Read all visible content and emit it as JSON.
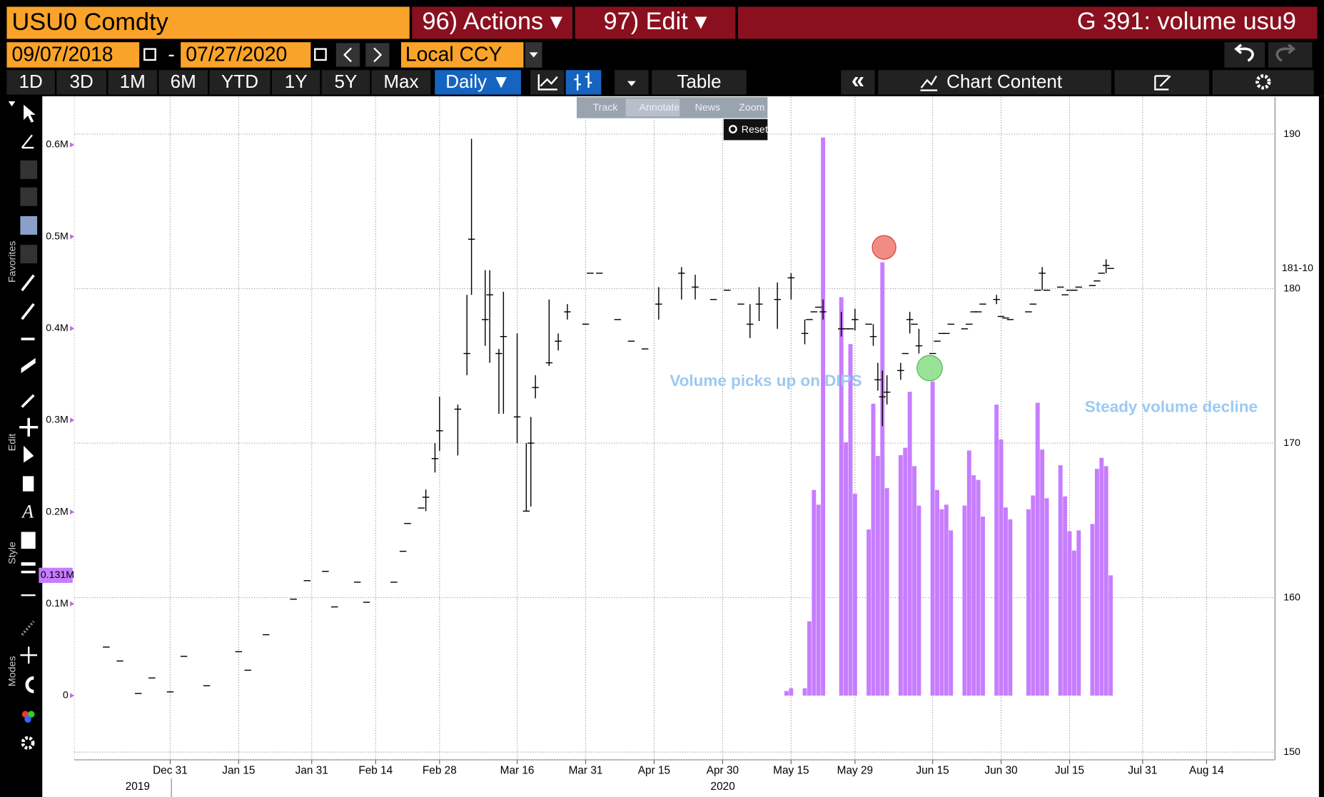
{
  "header": {
    "security": "USU0 Comdty",
    "actions": "96) Actions ▾",
    "edit": "97) Edit ▾",
    "chart_name": "G 391: volume usu9"
  },
  "controls": {
    "start_date": "09/07/2018",
    "date_separator": "-",
    "end_date": "07/27/2020",
    "currency": "Local CCY",
    "ranges": [
      "1D",
      "3D",
      "1M",
      "6M",
      "YTD",
      "1Y",
      "5Y",
      "Max"
    ],
    "frequency": "Daily ▼",
    "table": "Table",
    "collapse": "«",
    "chart_content": "Chart Content"
  },
  "zoom_menu": {
    "items": [
      "Track",
      "Annotate",
      "News",
      "Zoom"
    ],
    "reset": "Reset"
  },
  "sidebar": {
    "sections": [
      "Favorites",
      "Edit",
      "Style",
      "Modes"
    ]
  },
  "chart_data": {
    "type": "bar",
    "grid": true,
    "xlim": [
      "2019-12-10",
      "2020-08-29"
    ],
    "xticks": [
      {
        "value": "2019-12-31",
        "label": "Dec 31"
      },
      {
        "value": "2020-01-15",
        "label": "Jan 15"
      },
      {
        "value": "2020-01-31",
        "label": "Jan 31"
      },
      {
        "value": "2020-02-14",
        "label": "Feb 14"
      },
      {
        "value": "2020-02-28",
        "label": "Feb 28"
      },
      {
        "value": "2020-03-16",
        "label": "Mar 16"
      },
      {
        "value": "2020-03-31",
        "label": "Mar 31"
      },
      {
        "value": "2020-04-15",
        "label": "Apr 15"
      },
      {
        "value": "2020-04-30",
        "label": "Apr 30"
      },
      {
        "value": "2020-05-15",
        "label": "May 15"
      },
      {
        "value": "2020-05-29",
        "label": "May 29"
      },
      {
        "value": "2020-06-15",
        "label": "Jun 15"
      },
      {
        "value": "2020-06-30",
        "label": "Jun 30"
      },
      {
        "value": "2020-07-15",
        "label": "Jul 15"
      },
      {
        "value": "2020-07-31",
        "label": "Jul 31"
      },
      {
        "value": "2020-08-14",
        "label": "Aug 14"
      }
    ],
    "year_labels": [
      "2019",
      "2020"
    ],
    "ylim": [
      -70000,
      652000
    ],
    "yticks": [
      0,
      {
        "value": 100000,
        "label": "0.1M"
      },
      {
        "value": 200000,
        "label": "0.2M"
      },
      {
        "value": 300000,
        "label": "0.3M"
      },
      {
        "value": 400000,
        "label": "0.4M"
      },
      {
        "value": 500000,
        "label": "0.5M"
      },
      {
        "value": 600000,
        "label": "0.6M"
      }
    ],
    "y2lim": [
      149.5,
      192.4
    ],
    "y2ticks": [
      150,
      160,
      170,
      180,
      190
    ],
    "annotations": [
      "Volume picks up on DIPS",
      "Steady volume decline"
    ],
    "series": [
      {
        "type": "bar",
        "color": "#c77dff",
        "last_label": "0.131M",
        "x": [
          "2020-05-14",
          "2020-05-15",
          "2020-05-18",
          "2020-05-19",
          "2020-05-20",
          "2020-05-21",
          "2020-05-22",
          "2020-05-26",
          "2020-05-27",
          "2020-05-28",
          "2020-05-29",
          "2020-06-01",
          "2020-06-02",
          "2020-06-03",
          "2020-06-04",
          "2020-06-05",
          "2020-06-08",
          "2020-06-09",
          "2020-06-10",
          "2020-06-11",
          "2020-06-12",
          "2020-06-15",
          "2020-06-16",
          "2020-06-17",
          "2020-06-18",
          "2020-06-19",
          "2020-06-22",
          "2020-06-23",
          "2020-06-24",
          "2020-06-25",
          "2020-06-26",
          "2020-06-29",
          "2020-06-30",
          "2020-07-01",
          "2020-07-02",
          "2020-07-06",
          "2020-07-07",
          "2020-07-08",
          "2020-07-09",
          "2020-07-10",
          "2020-07-13",
          "2020-07-14",
          "2020-07-15",
          "2020-07-16",
          "2020-07-17",
          "2020-07-20",
          "2020-07-21",
          "2020-07-22",
          "2020-07-23",
          "2020-07-24"
        ],
        "values": [
          5000,
          8000,
          8000,
          81000,
          224000,
          208000,
          608000,
          434000,
          276000,
          383000,
          220000,
          181000,
          318000,
          261000,
          472000,
          226000,
          262000,
          270000,
          331000,
          250000,
          207000,
          342000,
          224000,
          203000,
          208000,
          180000,
          207000,
          267000,
          240000,
          235000,
          195000,
          317000,
          279000,
          205000,
          192000,
          203000,
          218000,
          319000,
          268000,
          215000,
          251000,
          217000,
          179000,
          158000,
          180000,
          187000,
          247000,
          259000,
          250000,
          131000
        ]
      },
      {
        "type": "ohlc",
        "axis": "y2",
        "color": "#000000",
        "last_label": "181-10",
        "x": [
          "2019-12-17",
          "2019-12-20",
          "2019-12-24",
          "2019-12-27",
          "2019-12-31",
          "2020-01-03",
          "2020-01-08",
          "2020-01-15",
          "2020-01-17",
          "2020-01-21",
          "2020-01-27",
          "2020-01-30",
          "2020-02-03",
          "2020-02-05",
          "2020-02-10",
          "2020-02-12",
          "2020-02-18",
          "2020-02-20",
          "2020-02-21",
          "2020-02-24",
          "2020-02-25",
          "2020-02-27",
          "2020-02-28",
          "2020-03-03",
          "2020-03-05",
          "2020-03-06",
          "2020-03-09",
          "2020-03-10",
          "2020-03-12",
          "2020-03-13",
          "2020-03-16",
          "2020-03-18",
          "2020-03-19",
          "2020-03-20",
          "2020-03-23",
          "2020-03-25",
          "2020-03-27",
          "2020-03-31",
          "2020-04-01",
          "2020-04-03",
          "2020-04-07",
          "2020-04-10",
          "2020-04-13",
          "2020-04-16",
          "2020-04-21",
          "2020-04-24",
          "2020-04-28",
          "2020-05-01",
          "2020-05-04",
          "2020-05-06",
          "2020-05-08",
          "2020-05-12",
          "2020-05-15",
          "2020-05-18",
          "2020-05-19",
          "2020-05-20",
          "2020-05-21",
          "2020-05-22",
          "2020-05-26",
          "2020-05-27",
          "2020-05-28",
          "2020-05-29",
          "2020-06-01",
          "2020-06-02",
          "2020-06-03",
          "2020-06-04",
          "2020-06-05",
          "2020-06-08",
          "2020-06-09",
          "2020-06-10",
          "2020-06-11",
          "2020-06-12",
          "2020-06-15",
          "2020-06-16",
          "2020-06-17",
          "2020-06-18",
          "2020-06-19",
          "2020-06-22",
          "2020-06-23",
          "2020-06-24",
          "2020-06-25",
          "2020-06-26",
          "2020-06-29",
          "2020-06-30",
          "2020-07-01",
          "2020-07-02",
          "2020-07-06",
          "2020-07-07",
          "2020-07-08",
          "2020-07-09",
          "2020-07-10",
          "2020-07-13",
          "2020-07-14",
          "2020-07-15",
          "2020-07-16",
          "2020-07-17",
          "2020-07-20",
          "2020-07-21",
          "2020-07-22",
          "2020-07-23",
          "2020-07-24"
        ],
        "high": [
          null,
          null,
          null,
          null,
          null,
          null,
          null,
          null,
          null,
          null,
          null,
          null,
          null,
          null,
          null,
          null,
          null,
          null,
          null,
          null,
          167.0,
          170.0,
          173.0,
          172.5,
          179.6,
          189.7,
          181.2,
          181.2,
          176.1,
          179.8,
          177.1,
          170.0,
          171.7,
          174.4,
          179.3,
          177.1,
          179.0,
          null,
          null,
          null,
          null,
          null,
          null,
          180.1,
          181.4,
          180.9,
          null,
          null,
          null,
          179.0,
          180.1,
          180.4,
          181.0,
          178.0,
          null,
          null,
          null,
          179.3,
          178.5,
          null,
          null,
          178.7,
          null,
          177.7,
          175.2,
          174.7,
          174.4,
          175.2,
          null,
          178.5,
          null,
          177.4,
          null,
          null,
          null,
          null,
          null,
          null,
          null,
          null,
          null,
          null,
          179.6,
          null,
          null,
          null,
          null,
          null,
          null,
          181.4,
          null,
          null,
          null,
          null,
          null,
          null,
          null,
          null,
          null,
          181.9,
          null
        ],
        "low": [
          null,
          null,
          null,
          null,
          null,
          null,
          null,
          null,
          null,
          null,
          null,
          null,
          null,
          null,
          null,
          null,
          null,
          null,
          null,
          null,
          165.6,
          168.1,
          169.5,
          169.2,
          174.4,
          179.6,
          176.3,
          175.2,
          171.9,
          171.9,
          170.0,
          165.6,
          165.9,
          172.9,
          175.0,
          176.0,
          178.0,
          null,
          null,
          null,
          null,
          null,
          null,
          178.0,
          179.3,
          179.3,
          null,
          null,
          null,
          176.8,
          177.9,
          177.4,
          179.3,
          176.4,
          null,
          null,
          null,
          178.0,
          176.9,
          null,
          null,
          177.3,
          null,
          176.3,
          173.4,
          171.1,
          172.5,
          174.1,
          null,
          177.1,
          null,
          175.8,
          null,
          null,
          null,
          null,
          null,
          null,
          null,
          null,
          null,
          null,
          179.0,
          null,
          null,
          null,
          null,
          null,
          null,
          179.9,
          null,
          null,
          null,
          null,
          null,
          null,
          null,
          null,
          null,
          181.0,
          null
        ],
        "close": [
          156.8,
          155.9,
          153.8,
          154.8,
          153.9,
          156.2,
          154.3,
          156.5,
          155.3,
          157.6,
          159.9,
          161.1,
          161.7,
          159.4,
          161.0,
          159.7,
          161.0,
          163.0,
          164.8,
          165.8,
          166.5,
          169.0,
          170.8,
          172.2,
          175.8,
          183.2,
          178.0,
          179.6,
          175.8,
          176.9,
          171.7,
          165.6,
          170.0,
          173.6,
          175.2,
          176.6,
          178.5,
          177.7,
          181.0,
          181.0,
          178.0,
          176.6,
          176.1,
          179.0,
          181.0,
          180.1,
          179.3,
          179.9,
          179.0,
          177.7,
          179.0,
          179.3,
          180.7,
          177.1,
          178.0,
          178.5,
          178.8,
          178.5,
          177.4,
          177.4,
          177.4,
          178.0,
          177.7,
          176.9,
          174.1,
          173.0,
          173.3,
          174.7,
          175.8,
          178.0,
          177.7,
          176.3,
          175.8,
          176.6,
          177.1,
          177.1,
          177.7,
          177.4,
          177.7,
          178.5,
          178.5,
          179.0,
          179.3,
          178.2,
          178.1,
          178.0,
          178.5,
          179.0,
          179.9,
          181.0,
          179.9,
          180.1,
          179.6,
          179.9,
          179.9,
          180.1,
          180.2,
          180.5,
          181.0,
          181.5,
          181.31
        ]
      }
    ]
  }
}
